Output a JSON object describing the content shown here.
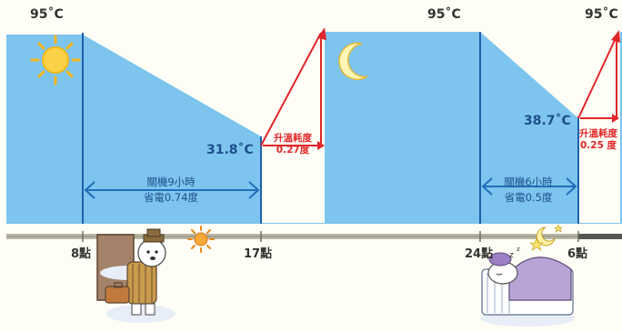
{
  "temps": {
    "max_left": "95˚C",
    "max_mid": "95˚C",
    "max_right": "95˚C",
    "drop_17": "31.8˚C",
    "drop_6": "38.7˚C"
  },
  "reheat": [
    {
      "line1": "升溫耗度",
      "line2": "0.27度"
    },
    {
      "line1": "升溫耗度",
      "line2": "0.25 度"
    }
  ],
  "off_periods": [
    {
      "line1": "關機9小時",
      "line2": "省電0.74度"
    },
    {
      "line1": "關機6小時",
      "line2": "省電0.5度"
    }
  ],
  "timeline": [
    "8點",
    "17點",
    "24點",
    "6點"
  ],
  "colors": {
    "area": "#7dc4ee",
    "line": "#1f5fab",
    "arrow": "#1f6fba",
    "red": "#e0262a",
    "axis": "#9c9a8a"
  },
  "icons": [
    "sun-icon",
    "moon-icon",
    "small-sun-icon",
    "stars-icon",
    "bear-with-suitcase-illustration",
    "sleeping-bear-illustration"
  ]
}
